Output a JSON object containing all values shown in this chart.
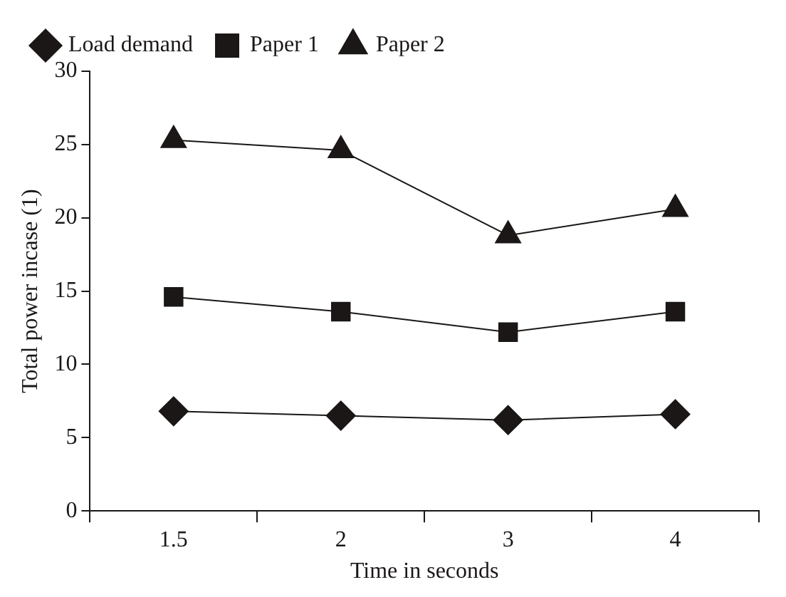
{
  "chart_data": {
    "type": "line",
    "xlabel": "Time in seconds",
    "ylabel": "Total power incase (1)",
    "categories": [
      "1.5",
      "2",
      "3",
      "4"
    ],
    "series": [
      {
        "name": "Load demand",
        "color": "#1a1716",
        "marker": "diamond",
        "values": [
          6.8,
          6.5,
          6.2,
          6.6
        ]
      },
      {
        "name": "Paper 1",
        "color": "#1a1716",
        "marker": "square",
        "values": [
          14.6,
          13.6,
          12.2,
          13.6
        ]
      },
      {
        "name": "Paper 2",
        "color": "#1a1716",
        "marker": "triangle",
        "values": [
          25.3,
          24.6,
          18.8,
          20.6
        ]
      }
    ],
    "ylim": [
      0,
      30
    ],
    "yticks": [
      0,
      5,
      10,
      15,
      20,
      25,
      30
    ],
    "grid": false,
    "legend": "top left",
    "line_style": "solid"
  }
}
